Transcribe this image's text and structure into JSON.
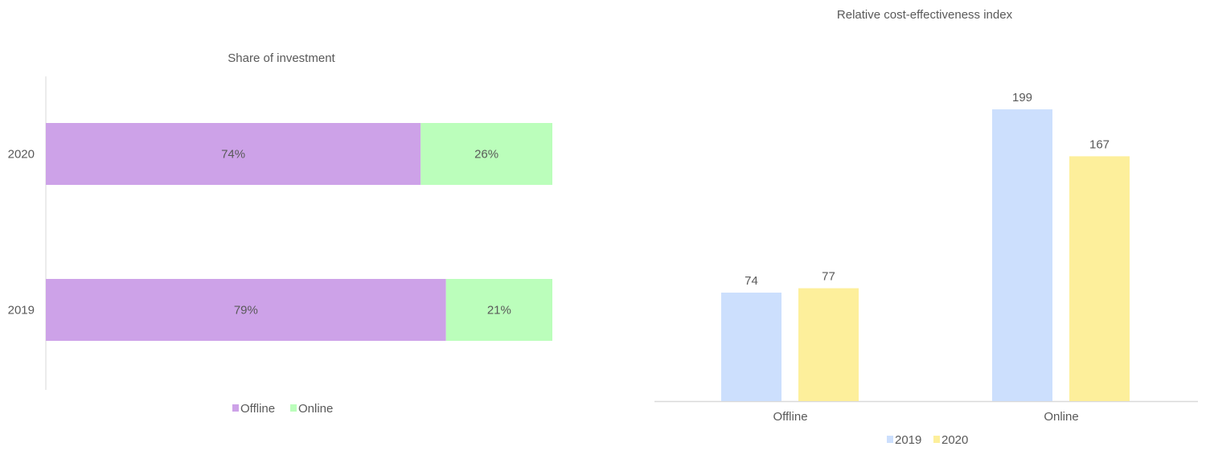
{
  "chart_data": [
    {
      "type": "bar",
      "orientation": "horizontal",
      "stacked": true,
      "title": "Share of investment",
      "categories": [
        "2020",
        "2019"
      ],
      "series": [
        {
          "name": "Offline",
          "values": [
            74,
            79
          ],
          "labels": [
            "74%",
            "79%"
          ],
          "color": "#CDA2E8"
        },
        {
          "name": "Online",
          "values": [
            26,
            21
          ],
          "labels": [
            "26%",
            "21%"
          ],
          "color": "#BBFEBB"
        }
      ],
      "xlim": [
        0,
        100
      ],
      "grid": false,
      "legend": "bottom"
    },
    {
      "type": "bar",
      "orientation": "vertical",
      "title": "Relative cost-effectiveness index",
      "categories": [
        "Offline",
        "Online"
      ],
      "series": [
        {
          "name": "2019",
          "values": [
            74,
            199
          ],
          "color": "#CCDFFD"
        },
        {
          "name": "2020",
          "values": [
            77,
            167
          ],
          "color": "#FDEF9B"
        }
      ],
      "grid": false,
      "legend": "bottom"
    }
  ]
}
